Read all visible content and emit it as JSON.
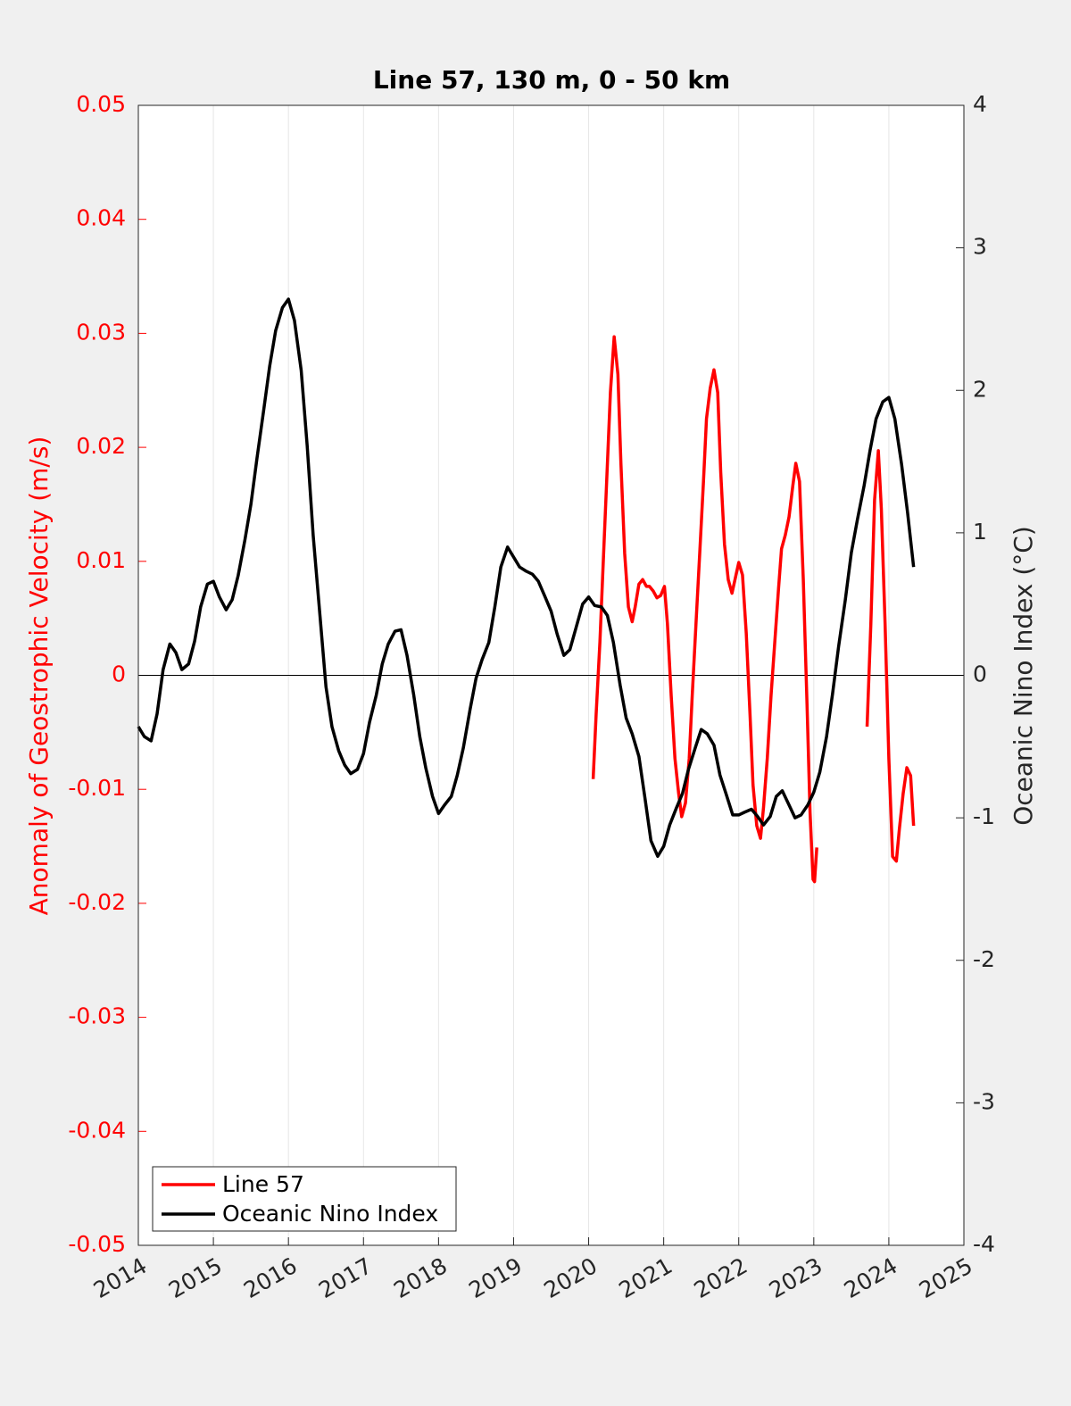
{
  "chart_data": {
    "type": "line",
    "title": "Line 57, 130 m, 0 - 50 km",
    "ylabel": "Anomaly of Geostrophic Velocity (m/s)",
    "y2label": "Oceanic Nino Index (°C)",
    "xlim": [
      2014,
      2025
    ],
    "xticks": [
      2014,
      2015,
      2016,
      2017,
      2018,
      2019,
      2020,
      2021,
      2022,
      2023,
      2024,
      2025
    ],
    "ylim": [
      -0.05,
      0.05
    ],
    "yticks": [
      -0.05,
      -0.04,
      -0.03,
      -0.02,
      -0.01,
      0,
      0.01,
      0.02,
      0.03,
      0.04,
      0.05
    ],
    "y2lim": [
      -4,
      4
    ],
    "y2ticks": [
      -4,
      -3,
      -2,
      -1,
      0,
      1,
      2,
      3,
      4
    ],
    "grid": true,
    "legend": "lower left",
    "series": [
      {
        "name": "Line 57",
        "color": "#ff0000",
        "axis": "y",
        "x": [
          2020.06,
          2020.1,
          2020.15,
          2020.19,
          2020.24,
          2020.29,
          2020.34,
          2020.39,
          2020.43,
          2020.48,
          2020.53,
          2020.58,
          2020.62,
          2020.67,
          2020.72,
          2020.77,
          2020.81,
          2020.86,
          2020.91,
          2020.96,
          2021.01,
          2021.05,
          2021.1,
          2021.15,
          2021.2,
          2021.24,
          2021.29,
          2021.34,
          2021.38,
          2021.43,
          2021.48,
          2021.53,
          2021.57,
          2021.62,
          2021.67,
          2021.72,
          2021.76,
          2021.81,
          2021.86,
          2021.91,
          2021.95,
          2022.0,
          2022.05,
          2022.1,
          2022.15,
          2022.19,
          2022.24,
          2022.29,
          2022.33,
          2022.38,
          2022.43,
          2022.48,
          2022.53,
          2022.57,
          2022.62,
          2022.67,
          2022.72,
          2022.76,
          2022.81,
          2022.86,
          2022.91,
          2022.95,
          2022.99,
          2023.01,
          2023.04,
          2023.4,
          2023.71,
          2023.76,
          2023.81,
          2023.86,
          2023.9,
          2023.95,
          2024.0,
          2024.05,
          2024.1,
          2024.14,
          2024.19,
          2024.24,
          2024.29,
          2024.33
        ],
        "values": [
          -0.0091,
          -0.0034,
          0.0029,
          0.0092,
          0.017,
          0.0248,
          0.0297,
          0.0264,
          0.0186,
          0.0107,
          0.006,
          0.0047,
          0.006,
          0.008,
          0.0084,
          0.0078,
          0.0078,
          0.0074,
          0.0068,
          0.007,
          0.0078,
          0.0045,
          -0.0018,
          -0.0073,
          -0.0104,
          -0.0124,
          -0.0112,
          -0.0073,
          -0.0018,
          0.0045,
          0.0107,
          0.017,
          0.0225,
          0.0252,
          0.0268,
          0.0248,
          0.0178,
          0.0115,
          0.0084,
          0.0072,
          0.0084,
          0.0099,
          0.0088,
          0.0037,
          -0.0034,
          -0.0096,
          -0.0132,
          -0.0143,
          -0.0116,
          -0.0073,
          -0.0018,
          0.0029,
          0.0076,
          0.0111,
          0.0123,
          0.0139,
          0.0166,
          0.0186,
          0.017,
          0.0084,
          -0.0026,
          -0.012,
          -0.0179,
          -0.0181,
          -0.0151,
          null,
          -0.0045,
          0.0045,
          0.0154,
          0.0197,
          0.0146,
          0.0045,
          -0.0073,
          -0.0159,
          -0.0163,
          -0.0135,
          -0.0104,
          -0.0081,
          -0.0088,
          -0.0132
        ]
      },
      {
        "name": "Oceanic Nino Index",
        "color": "#000000",
        "axis": "y2",
        "x": [
          2014.0,
          2014.08,
          2014.17,
          2014.25,
          2014.33,
          2014.42,
          2014.5,
          2014.58,
          2014.67,
          2014.75,
          2014.83,
          2014.92,
          2015.0,
          2015.08,
          2015.17,
          2015.25,
          2015.33,
          2015.42,
          2015.5,
          2015.58,
          2015.67,
          2015.75,
          2015.83,
          2015.92,
          2016.0,
          2016.08,
          2016.17,
          2016.25,
          2016.33,
          2016.42,
          2016.5,
          2016.58,
          2016.67,
          2016.75,
          2016.83,
          2016.92,
          2017.0,
          2017.08,
          2017.17,
          2017.25,
          2017.33,
          2017.42,
          2017.5,
          2017.58,
          2017.67,
          2017.75,
          2017.83,
          2017.92,
          2018.0,
          2018.08,
          2018.17,
          2018.25,
          2018.33,
          2018.42,
          2018.5,
          2018.58,
          2018.67,
          2018.75,
          2018.83,
          2018.92,
          2019.0,
          2019.08,
          2019.17,
          2019.25,
          2019.33,
          2019.42,
          2019.5,
          2019.58,
          2019.67,
          2019.75,
          2019.83,
          2019.92,
          2020.0,
          2020.08,
          2020.17,
          2020.25,
          2020.33,
          2020.42,
          2020.5,
          2020.58,
          2020.67,
          2020.75,
          2020.83,
          2020.92,
          2021.0,
          2021.08,
          2021.17,
          2021.25,
          2021.33,
          2021.42,
          2021.5,
          2021.58,
          2021.67,
          2021.75,
          2021.83,
          2021.92,
          2022.0,
          2022.08,
          2022.17,
          2022.25,
          2022.33,
          2022.42,
          2022.5,
          2022.58,
          2022.67,
          2022.75,
          2022.83,
          2022.92,
          2023.0,
          2023.08,
          2023.17,
          2023.25,
          2023.33,
          2023.42,
          2023.5,
          2023.58,
          2023.67,
          2023.75,
          2023.83,
          2023.92,
          2024.0,
          2024.08,
          2024.17,
          2024.25,
          2024.33
        ],
        "values": [
          -0.36,
          -0.43,
          -0.46,
          -0.27,
          0.04,
          0.22,
          0.16,
          0.04,
          0.08,
          0.24,
          0.48,
          0.64,
          0.66,
          0.55,
          0.46,
          0.53,
          0.7,
          0.95,
          1.2,
          1.52,
          1.86,
          2.17,
          2.42,
          2.58,
          2.64,
          2.49,
          2.14,
          1.61,
          0.98,
          0.42,
          -0.08,
          -0.36,
          -0.53,
          -0.63,
          -0.69,
          -0.66,
          -0.55,
          -0.33,
          -0.14,
          0.08,
          0.22,
          0.31,
          0.32,
          0.14,
          -0.14,
          -0.43,
          -0.65,
          -0.85,
          -0.97,
          -0.91,
          -0.85,
          -0.7,
          -0.51,
          -0.24,
          -0.02,
          0.11,
          0.23,
          0.48,
          0.76,
          0.9,
          0.83,
          0.76,
          0.73,
          0.71,
          0.66,
          0.55,
          0.45,
          0.29,
          0.14,
          0.18,
          0.33,
          0.5,
          0.55,
          0.49,
          0.48,
          0.42,
          0.23,
          -0.07,
          -0.3,
          -0.41,
          -0.57,
          -0.86,
          -1.16,
          -1.27,
          -1.2,
          -1.05,
          -0.93,
          -0.83,
          -0.66,
          -0.51,
          -0.38,
          -0.41,
          -0.49,
          -0.7,
          -0.83,
          -0.98,
          -0.98,
          -0.96,
          -0.94,
          -0.99,
          -1.05,
          -0.99,
          -0.85,
          -0.81,
          -0.91,
          -1.0,
          -0.98,
          -0.91,
          -0.82,
          -0.68,
          -0.43,
          -0.13,
          0.2,
          0.53,
          0.86,
          1.09,
          1.33,
          1.58,
          1.8,
          1.92,
          1.95,
          1.8,
          1.48,
          1.14,
          0.76
        ]
      }
    ]
  }
}
